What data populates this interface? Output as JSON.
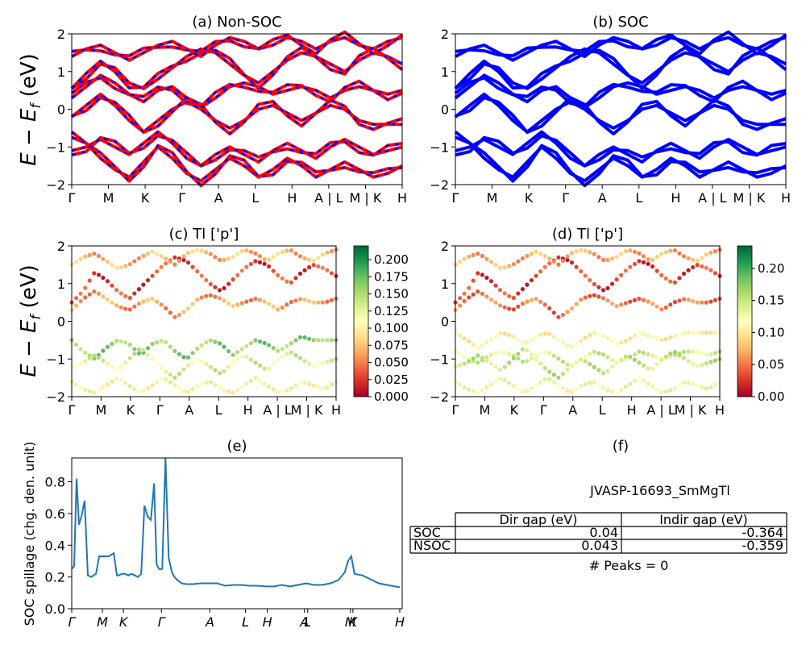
{
  "chart_data": [
    {
      "panel": "a",
      "type": "line",
      "title": "(a) Non-SOC",
      "ylabel": "E − E_f (eV)",
      "ylabel_main": "E − E",
      "ylabel_sub": "f",
      "ylabel_unit": " (eV)",
      "ylim": [
        -2,
        2
      ],
      "yticks": [
        "2",
        "1",
        "0",
        "−1",
        "−2"
      ],
      "xticks": [
        "Γ",
        "M",
        "K",
        "Γ",
        "A",
        "L",
        "H",
        "A | L",
        "M | K",
        "H"
      ],
      "series": [
        {
          "values": [
            0.55,
            0.8,
            1.2,
            1.1,
            0.7,
            0.55,
            0.8,
            1.1,
            1.4,
            1.6,
            1.5,
            1.2,
            0.9,
            0.7,
            1.0,
            1.3,
            1.5,
            1.4,
            1.2,
            1.0,
            1.3,
            1.5,
            1.4,
            1.2
          ],
          "color": "#ff0000"
        },
        {
          "values": [
            0.3,
            0.6,
            0.9,
            0.7,
            0.4,
            0.2,
            0.5,
            0.6,
            0.3,
            0.05,
            0.3,
            0.6,
            0.7,
            0.6,
            0.4,
            0.5,
            0.6,
            0.5,
            0.3,
            0.5,
            0.6,
            0.5,
            0.4,
            0.5
          ],
          "color": "#ff0000"
        },
        {
          "values": [
            1.4,
            1.6,
            1.7,
            1.5,
            1.3,
            1.5,
            1.7,
            1.8,
            1.6,
            1.4,
            1.7,
            1.9,
            1.8,
            1.6,
            1.7,
            1.9,
            1.8,
            1.6,
            1.8,
            1.9,
            1.7,
            1.6,
            1.8,
            1.9
          ],
          "color": "#ff0000"
        },
        {
          "values": [
            -0.2,
            0.1,
            0.4,
            0.1,
            -0.3,
            -0.6,
            -0.3,
            0.0,
            0.2,
            0.0,
            -0.3,
            -0.5,
            -0.3,
            0.0,
            0.1,
            -0.1,
            -0.3,
            -0.1,
            0.1,
            0.0,
            -0.3,
            -0.4,
            -0.4,
            -0.4
          ],
          "color": "#ff0000"
        },
        {
          "values": [
            -1.1,
            -1.0,
            -0.8,
            -1.0,
            -1.2,
            -0.9,
            -0.6,
            -0.9,
            -1.3,
            -1.5,
            -1.2,
            -1.0,
            -1.2,
            -1.4,
            -1.1,
            -0.9,
            -1.1,
            -1.3,
            -1.0,
            -0.8,
            -1.0,
            -1.2,
            -1.1,
            -1.0
          ],
          "color": "#ff0000"
        },
        {
          "values": [
            -0.6,
            -0.9,
            -1.3,
            -1.6,
            -1.8,
            -1.4,
            -1.0,
            -1.3,
            -1.7,
            -1.9,
            -1.6,
            -1.3,
            -1.5,
            -1.8,
            -1.6,
            -1.3,
            -1.5,
            -1.8,
            -1.6,
            -1.4,
            -1.6,
            -1.8,
            -1.7,
            -1.5
          ],
          "color": "#ff0000"
        }
      ]
    },
    {
      "panel": "b",
      "type": "line",
      "title": "(b) SOC",
      "ylim": [
        -2,
        2
      ],
      "yticks": [
        "2",
        "1",
        "0",
        "−1",
        "−2"
      ],
      "xticks": [
        "Γ",
        "M",
        "K",
        "Γ",
        "A",
        "L",
        "H",
        "A | L",
        "M | K",
        "H"
      ],
      "series": [
        {
          "values": [
            0.55,
            0.8,
            1.2,
            1.1,
            0.7,
            0.55,
            0.8,
            1.1,
            1.4,
            1.6,
            1.5,
            1.2,
            0.9,
            0.7,
            1.0,
            1.3,
            1.5,
            1.4,
            1.2,
            1.0,
            1.3,
            1.5,
            1.4,
            1.2
          ],
          "color": "#0000ff"
        },
        {
          "values": [
            0.3,
            0.6,
            0.9,
            0.7,
            0.4,
            0.2,
            0.5,
            0.6,
            0.3,
            0.05,
            0.3,
            0.6,
            0.7,
            0.6,
            0.4,
            0.5,
            0.6,
            0.5,
            0.3,
            0.5,
            0.6,
            0.5,
            0.4,
            0.5
          ],
          "color": "#0000ff"
        },
        {
          "values": [
            1.4,
            1.6,
            1.7,
            1.5,
            1.3,
            1.5,
            1.7,
            1.8,
            1.6,
            1.4,
            1.7,
            1.9,
            1.8,
            1.6,
            1.7,
            1.9,
            1.8,
            1.6,
            1.8,
            1.9,
            1.7,
            1.6,
            1.8,
            1.9
          ],
          "color": "#0000ff"
        },
        {
          "values": [
            -0.2,
            0.1,
            0.4,
            0.1,
            -0.3,
            -0.6,
            -0.3,
            0.0,
            0.2,
            0.0,
            -0.3,
            -0.5,
            -0.3,
            0.0,
            0.1,
            -0.1,
            -0.3,
            -0.1,
            0.1,
            0.0,
            -0.3,
            -0.4,
            -0.4,
            -0.4
          ],
          "color": "#0000ff"
        },
        {
          "values": [
            -1.1,
            -1.0,
            -0.8,
            -1.0,
            -1.2,
            -0.9,
            -0.6,
            -0.9,
            -1.3,
            -1.5,
            -1.2,
            -1.0,
            -1.2,
            -1.4,
            -1.1,
            -0.9,
            -1.1,
            -1.3,
            -1.0,
            -0.8,
            -1.0,
            -1.2,
            -1.1,
            -1.0
          ],
          "color": "#0000ff"
        },
        {
          "values": [
            -0.6,
            -0.9,
            -1.3,
            -1.6,
            -1.8,
            -1.4,
            -1.0,
            -1.3,
            -1.7,
            -1.9,
            -1.6,
            -1.3,
            -1.5,
            -1.8,
            -1.6,
            -1.3,
            -1.5,
            -1.8,
            -1.6,
            -1.4,
            -1.6,
            -1.8,
            -1.7,
            -1.5
          ],
          "color": "#0000ff"
        }
      ]
    },
    {
      "panel": "c",
      "type": "scatter",
      "title": "(c)  Tl ['p']",
      "ylabel_main": "E − E",
      "ylabel_sub": "f",
      "ylabel_unit": " (eV)",
      "ylim": [
        -2,
        2
      ],
      "yticks": [
        "2",
        "1",
        "0",
        "−1",
        "−2"
      ],
      "xticks": [
        "Γ",
        "M",
        "K",
        "Γ",
        "A",
        "L",
        "H",
        "A | L",
        "M | K",
        "H"
      ],
      "colorbar": {
        "min": 0.0,
        "max": 0.22,
        "ticks": [
          "0.200",
          "0.175",
          "0.150",
          "0.125",
          "0.100",
          "0.075",
          "0.050",
          "0.025",
          "0.000"
        ],
        "tick_values": [
          0.2,
          0.175,
          0.15,
          0.125,
          0.1,
          0.075,
          0.05,
          0.025,
          0.0
        ],
        "colormap": "RdYlGn"
      },
      "bands": [
        {
          "values": [
            0.5,
            0.8,
            1.3,
            1.1,
            0.8,
            0.6,
            0.9,
            1.2,
            1.5,
            1.7,
            1.6,
            1.3,
            1.0,
            0.8,
            1.1,
            1.4,
            1.6,
            1.5,
            1.2,
            1.0,
            1.3,
            1.5,
            1.4,
            1.2
          ],
          "weight": 0.03
        },
        {
          "values": [
            1.5,
            1.7,
            1.8,
            1.6,
            1.4,
            1.5,
            1.7,
            1.85,
            1.7,
            1.5,
            1.8,
            1.9,
            1.8,
            1.6,
            1.7,
            1.9,
            1.8,
            1.6,
            1.8,
            1.9,
            1.7,
            1.6,
            1.8,
            1.9
          ],
          "weight": 0.07
        },
        {
          "values": [
            0.3,
            0.6,
            0.8,
            0.6,
            0.4,
            0.3,
            0.5,
            0.6,
            0.4,
            0.1,
            0.3,
            0.6,
            0.7,
            0.6,
            0.4,
            0.5,
            0.6,
            0.5,
            0.3,
            0.5,
            0.6,
            0.5,
            0.5,
            0.6
          ],
          "weight": 0.06
        },
        {
          "values": [
            -0.5,
            -0.8,
            -1.0,
            -0.7,
            -0.5,
            -0.6,
            -0.9,
            -0.6,
            -0.5,
            -0.8,
            -1.0,
            -0.7,
            -0.5,
            -0.6,
            -0.9,
            -0.7,
            -0.5,
            -0.6,
            -0.8,
            -0.6,
            -0.4,
            -0.5,
            -0.5,
            -0.5
          ],
          "weight": 0.16
        },
        {
          "values": [
            -1.2,
            -1.1,
            -0.9,
            -1.1,
            -1.3,
            -1.0,
            -0.7,
            -1.0,
            -1.3,
            -1.5,
            -1.2,
            -1.0,
            -1.2,
            -1.4,
            -1.1,
            -0.9,
            -1.1,
            -1.3,
            -1.0,
            -0.8,
            -1.0,
            -1.2,
            -1.1,
            -1.0
          ],
          "weight": 0.13
        },
        {
          "values": [
            -1.6,
            -1.8,
            -1.9,
            -1.7,
            -1.5,
            -1.7,
            -1.9,
            -1.7,
            -1.5,
            -1.7,
            -1.9,
            -1.7,
            -1.6,
            -1.8,
            -1.9,
            -1.7,
            -1.5,
            -1.7,
            -1.9,
            -1.8,
            -1.6,
            -1.7,
            -1.8,
            -1.6
          ],
          "weight": 0.11
        }
      ]
    },
    {
      "panel": "d",
      "type": "scatter",
      "title": "(d) Tl ['p']",
      "ylim": [
        -2,
        2
      ],
      "yticks": [
        "2",
        "1",
        "0",
        "−1",
        "−2"
      ],
      "xticks": [
        "Γ",
        "M",
        "K",
        "Γ",
        "A",
        "L",
        "H",
        "A | L",
        "M | K",
        "H"
      ],
      "colorbar": {
        "min": 0.0,
        "max": 0.235,
        "ticks": [
          "0.20",
          "0.15",
          "0.10",
          "0.05",
          "0.00"
        ],
        "tick_values": [
          0.2,
          0.15,
          0.1,
          0.05,
          0.0
        ],
        "colormap": "RdYlGn"
      },
      "bands": [
        {
          "values": [
            0.5,
            0.8,
            1.3,
            1.1,
            0.8,
            0.6,
            0.9,
            1.2,
            1.5,
            1.7,
            1.6,
            1.3,
            1.0,
            0.8,
            1.1,
            1.4,
            1.6,
            1.5,
            1.2,
            1.0,
            1.3,
            1.5,
            1.4,
            1.2
          ],
          "weight": 0.03
        },
        {
          "values": [
            1.5,
            1.7,
            1.8,
            1.6,
            1.4,
            1.5,
            1.7,
            1.85,
            1.7,
            1.5,
            1.8,
            1.9,
            1.8,
            1.6,
            1.7,
            1.9,
            1.8,
            1.6,
            1.8,
            1.9,
            1.7,
            1.6,
            1.8,
            1.9
          ],
          "weight": 0.07
        },
        {
          "values": [
            0.3,
            0.6,
            0.8,
            0.6,
            0.4,
            0.3,
            0.5,
            0.6,
            0.4,
            0.1,
            0.3,
            0.6,
            0.7,
            0.6,
            0.4,
            0.5,
            0.6,
            0.5,
            0.3,
            0.5,
            0.6,
            0.5,
            0.5,
            0.6
          ],
          "weight": 0.05
        },
        {
          "values": [
            -0.3,
            -0.5,
            -0.7,
            -0.5,
            -0.3,
            -0.4,
            -0.6,
            -0.4,
            -0.3,
            -0.5,
            -0.7,
            -0.5,
            -0.3,
            -0.4,
            -0.6,
            -0.5,
            -0.3,
            -0.4,
            -0.5,
            -0.4,
            -0.3,
            -0.3,
            -0.3,
            -0.3
          ],
          "weight": 0.11
        },
        {
          "values": [
            -0.8,
            -1.0,
            -1.1,
            -0.9,
            -0.8,
            -0.9,
            -1.1,
            -0.9,
            -0.8,
            -1.0,
            -1.2,
            -1.0,
            -0.8,
            -0.9,
            -1.1,
            -1.0,
            -0.8,
            -0.9,
            -1.0,
            -0.9,
            -0.8,
            -0.8,
            -0.9,
            -0.8
          ],
          "weight": 0.14
        },
        {
          "values": [
            -1.2,
            -1.1,
            -0.9,
            -1.1,
            -1.3,
            -1.0,
            -0.7,
            -1.0,
            -1.3,
            -1.5,
            -1.2,
            -1.0,
            -1.2,
            -1.4,
            -1.1,
            -0.9,
            -1.1,
            -1.3,
            -1.0,
            -0.8,
            -1.0,
            -1.2,
            -1.1,
            -1.0
          ],
          "weight": 0.15
        },
        {
          "values": [
            -1.6,
            -1.8,
            -1.9,
            -1.7,
            -1.5,
            -1.7,
            -1.9,
            -1.7,
            -1.5,
            -1.7,
            -1.9,
            -1.7,
            -1.6,
            -1.8,
            -1.9,
            -1.7,
            -1.5,
            -1.7,
            -1.9,
            -1.8,
            -1.6,
            -1.7,
            -1.8,
            -1.6
          ],
          "weight": 0.12
        }
      ]
    },
    {
      "panel": "e",
      "type": "line",
      "title": "(e)",
      "ylabel": "SOC spillage (chg. den. unit)",
      "ylim": [
        0,
        0.95
      ],
      "xlim": [
        0,
        409
      ],
      "yticks": [
        "0.8",
        "0.6",
        "0.4",
        "0.2",
        "0.0"
      ],
      "ytick_values": [
        0.8,
        0.6,
        0.4,
        0.2,
        0.0
      ],
      "xticks": [
        "Γ",
        "M",
        "K",
        "Γ",
        "A",
        "L",
        "H",
        "A",
        "L",
        "M",
        "K",
        "H"
      ],
      "xtick_positions": [
        0,
        38,
        64,
        111,
        171,
        215,
        242,
        288,
        292,
        345,
        348,
        406
      ],
      "x": [
        0,
        3,
        6,
        9,
        12,
        16,
        20,
        24,
        30,
        34,
        40,
        46,
        52,
        54,
        56,
        58,
        62,
        66,
        70,
        74,
        78,
        82,
        86,
        90,
        94,
        98,
        102,
        105,
        108,
        112,
        116,
        120,
        124,
        127,
        131,
        136,
        142,
        150,
        160,
        170,
        180,
        190,
        200,
        210,
        220,
        230,
        240,
        250,
        260,
        270,
        280,
        290,
        300,
        310,
        320,
        330,
        338,
        342,
        346,
        350,
        354,
        360,
        370,
        380,
        390,
        400,
        406
      ],
      "values": [
        0.25,
        0.27,
        0.82,
        0.53,
        0.58,
        0.68,
        0.21,
        0.2,
        0.22,
        0.33,
        0.33,
        0.33,
        0.35,
        0.28,
        0.21,
        0.21,
        0.22,
        0.22,
        0.21,
        0.22,
        0.21,
        0.2,
        0.22,
        0.65,
        0.58,
        0.56,
        0.79,
        0.28,
        0.25,
        0.25,
        0.95,
        0.32,
        0.23,
        0.2,
        0.18,
        0.16,
        0.155,
        0.155,
        0.16,
        0.16,
        0.16,
        0.145,
        0.15,
        0.15,
        0.145,
        0.145,
        0.14,
        0.14,
        0.15,
        0.14,
        0.15,
        0.16,
        0.15,
        0.15,
        0.16,
        0.18,
        0.23,
        0.3,
        0.33,
        0.22,
        0.215,
        0.21,
        0.185,
        0.16,
        0.15,
        0.14,
        0.135
      ]
    }
  ],
  "table": {
    "title": "(f)",
    "material": "JVASP-16693_SmMgTl",
    "headers": [
      "Dir gap (eV)",
      "Indir gap (eV)"
    ],
    "rows": [
      {
        "label": "SOC",
        "dir": "0.04",
        "indir": "-0.364"
      },
      {
        "label": "NSOC",
        "dir": "0.043",
        "indir": "-0.359"
      }
    ],
    "peaks": "# Peaks = 0"
  }
}
